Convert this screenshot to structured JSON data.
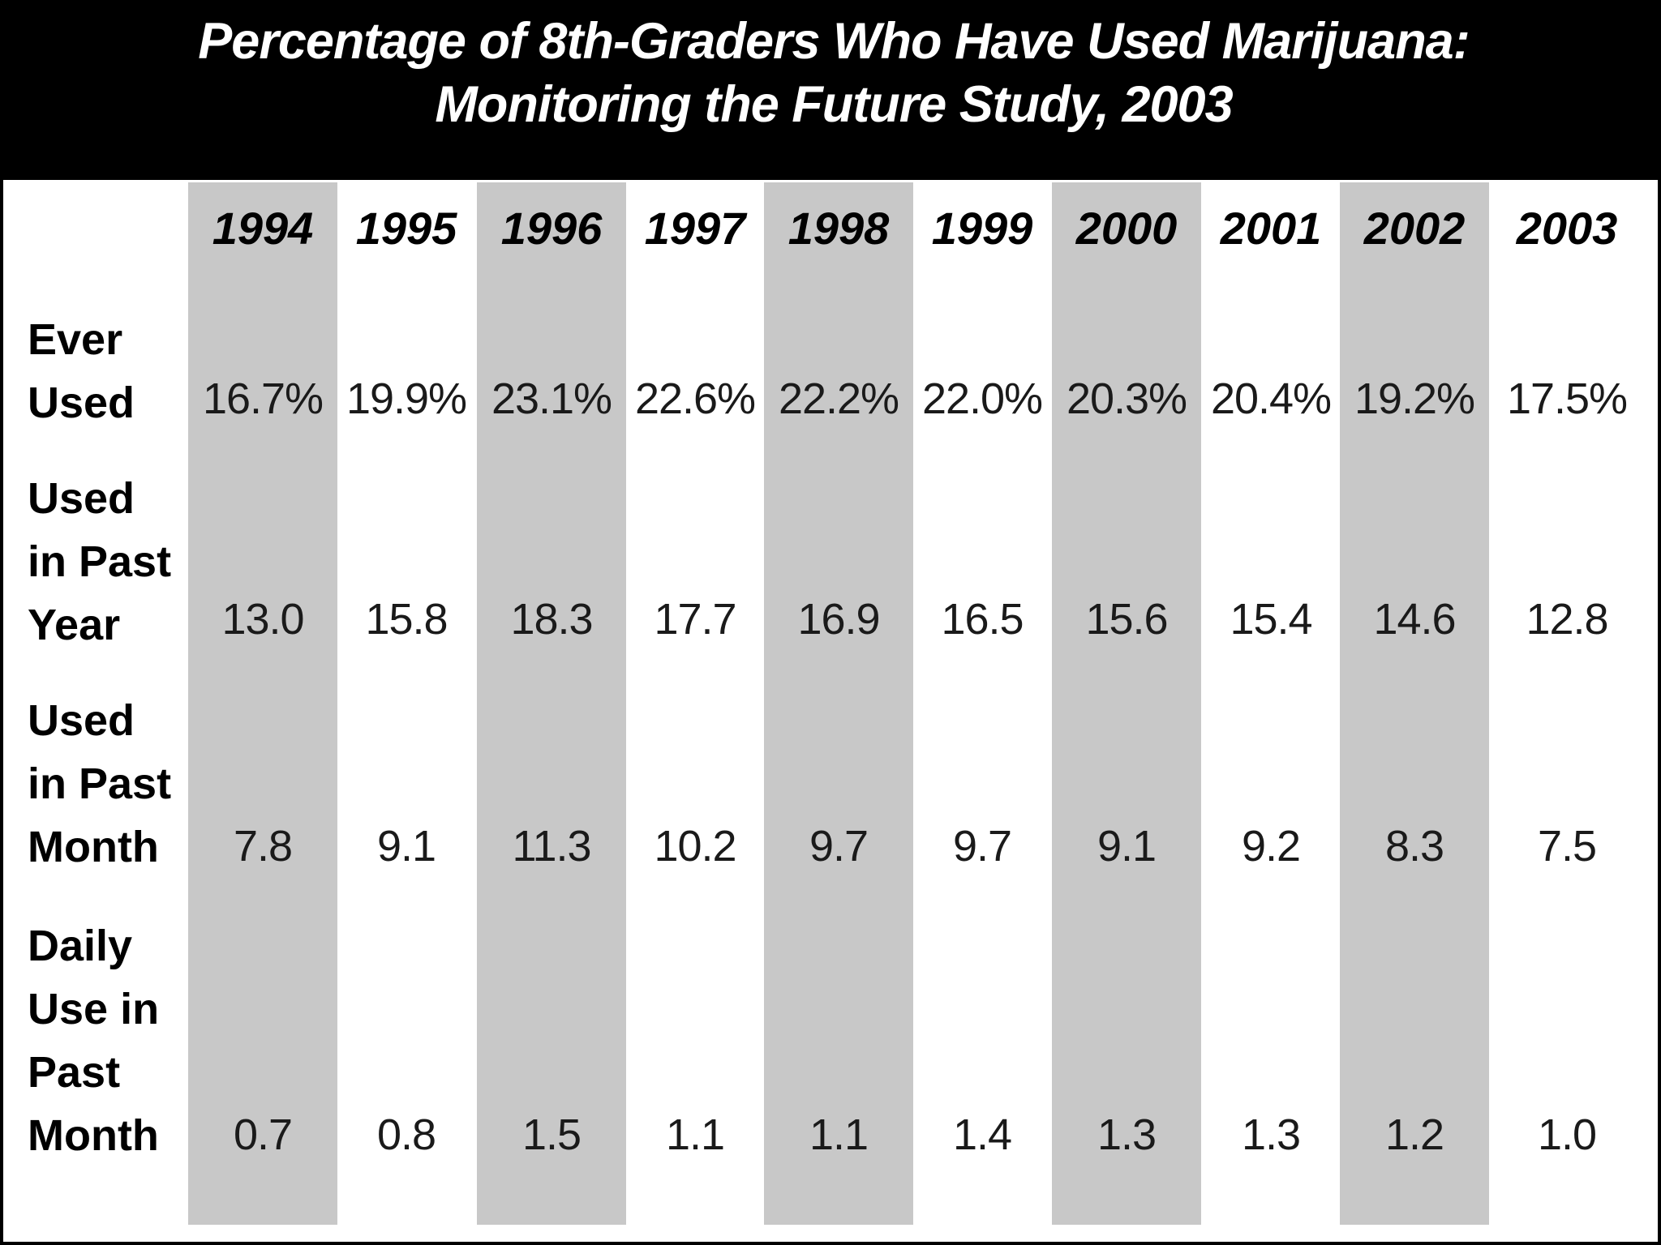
{
  "chart_data": {
    "type": "table",
    "title_lines": [
      "Percentage of 8th-Graders Who Have Used Marijuana:",
      "Monitoring the Future Study, 2003"
    ],
    "columns": [
      "1994",
      "1995",
      "1996",
      "1997",
      "1998",
      "1999",
      "2000",
      "2001",
      "2002",
      "2003"
    ],
    "rows": [
      {
        "label": "Ever\nUsed",
        "values": [
          "16.7%",
          "19.9%",
          "23.1%",
          "22.6%",
          "22.2%",
          "22.0%",
          "20.3%",
          "20.4%",
          "19.2%",
          "17.5%"
        ]
      },
      {
        "label": "Used\nin Past\nYear",
        "values": [
          "13.0",
          "15.8",
          "18.3",
          "17.7",
          "16.9",
          "16.5",
          "15.6",
          "15.4",
          "14.6",
          "12.8"
        ]
      },
      {
        "label": "Used\nin Past\nMonth",
        "values": [
          "7.8",
          "9.1",
          "11.3",
          "10.2",
          "9.7",
          "9.7",
          "9.1",
          "9.2",
          "8.3",
          "7.5"
        ]
      },
      {
        "label": "Daily\nUse in\nPast\nMonth",
        "values": [
          "0.7",
          "0.8",
          "1.5",
          "1.1",
          "1.1",
          "1.4",
          "1.3",
          "1.3",
          "1.2",
          "1.0"
        ]
      }
    ],
    "shaded_columns": [
      "1994",
      "1996",
      "1998",
      "2000",
      "2002"
    ],
    "colors": {
      "title_background": "#000000",
      "title_text": "#ffffff",
      "band": "#c8c8c8",
      "background": "#ffffff"
    }
  }
}
